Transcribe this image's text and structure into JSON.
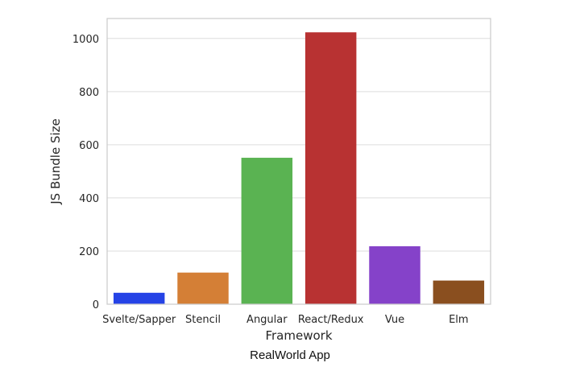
{
  "chart_data": {
    "type": "bar",
    "categories": [
      "Svelte/Sapper",
      "Stencil",
      "Angular",
      "React/Redux",
      "Vue",
      "Elm"
    ],
    "values": [
      43,
      119,
      551,
      1023,
      218,
      89
    ],
    "colors": [
      "#2543e6",
      "#d47f36",
      "#5ab352",
      "#b83232",
      "#8542c9",
      "#8a4f1f"
    ],
    "xlabel": "Framework",
    "ylabel": "JS Bundle Size",
    "ylim": [
      0,
      1075
    ],
    "yticks": [
      0,
      200,
      400,
      600,
      800,
      1000
    ],
    "grid": true
  },
  "caption": "RealWorld App"
}
